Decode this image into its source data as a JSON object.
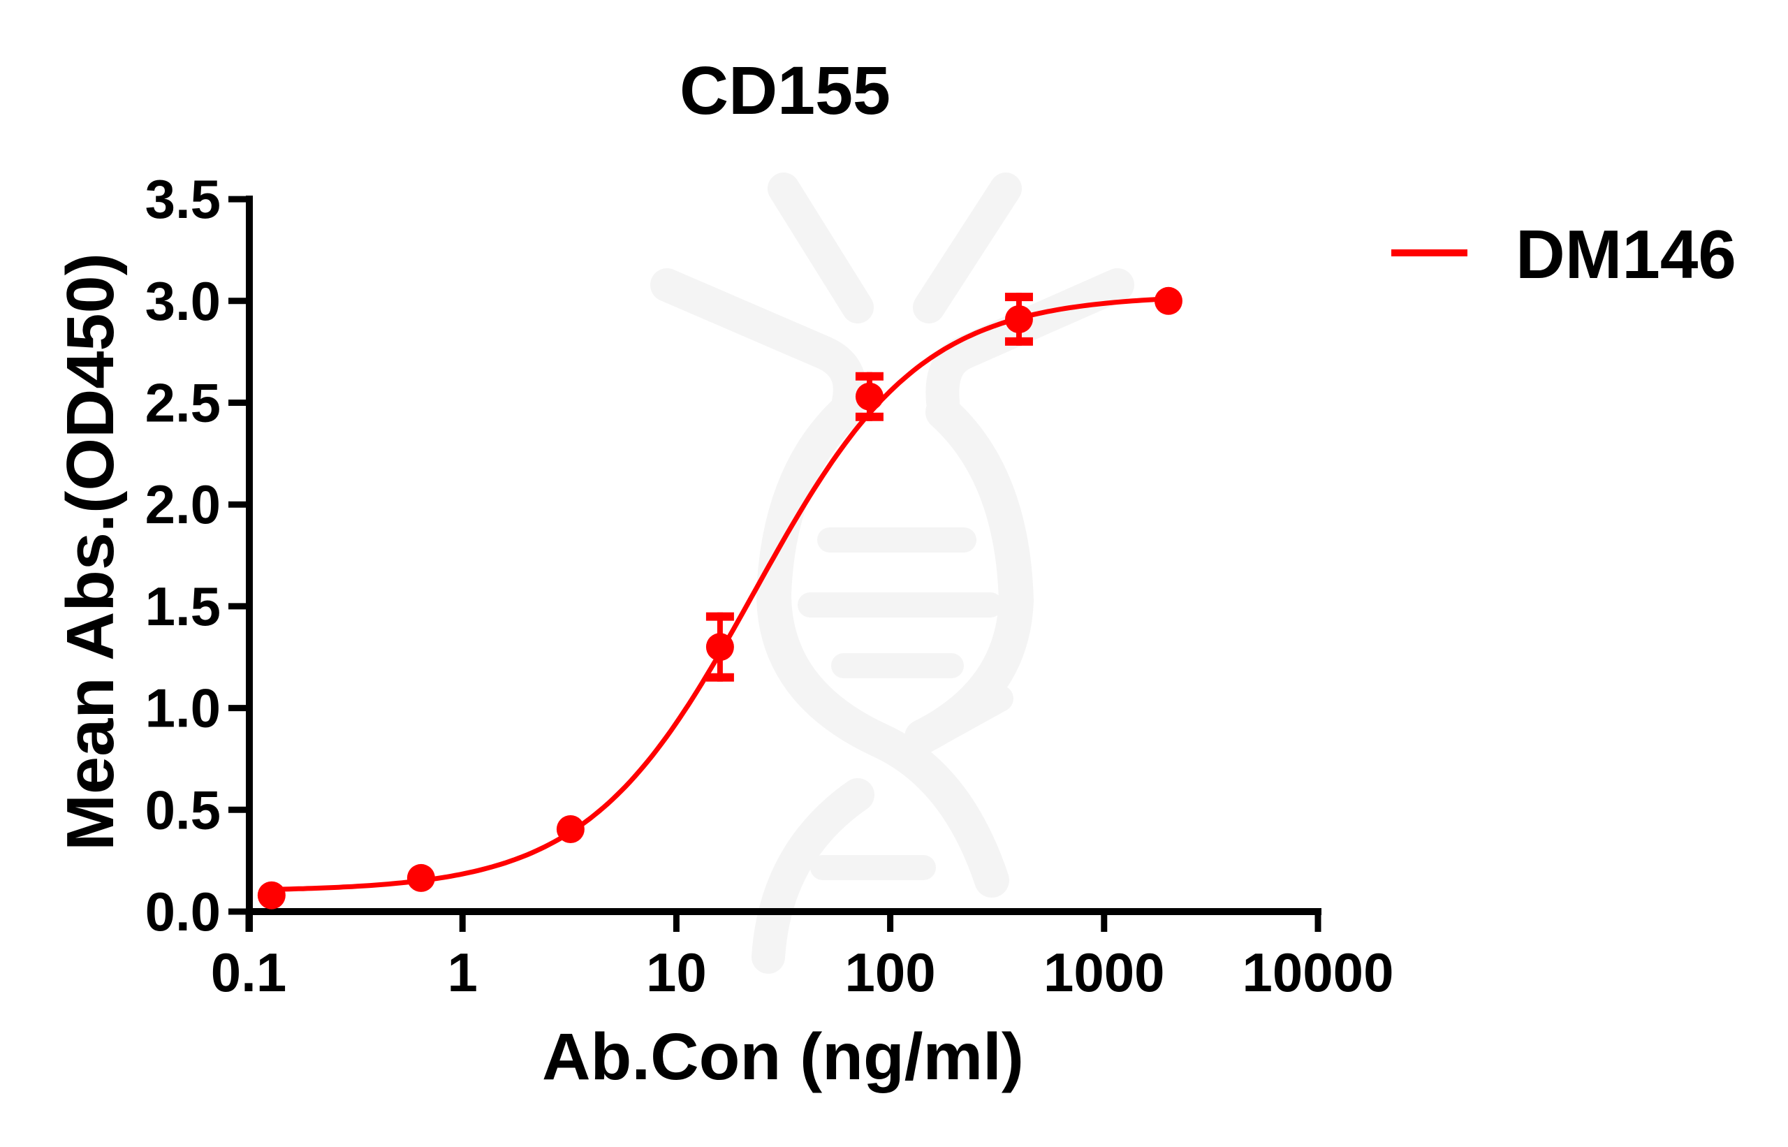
{
  "chart_data": {
    "type": "line",
    "title": "CD155",
    "xlabel": "Ab.Con (ng/ml)",
    "ylabel": "Mean Abs.(OD450)",
    "x_scale": "log10",
    "xlim": [
      0.1,
      10000
    ],
    "ylim": [
      0.0,
      3.5
    ],
    "x_ticks": [
      0.1,
      1,
      10,
      100,
      1000,
      10000
    ],
    "x_tick_labels": [
      "0.1",
      "1",
      "10",
      "100",
      "1000",
      "10000"
    ],
    "y_ticks": [
      0.0,
      0.5,
      1.0,
      1.5,
      2.0,
      2.5,
      3.0,
      3.5
    ],
    "y_tick_labels": [
      "0.0",
      "0.5",
      "1.0",
      "1.5",
      "2.0",
      "2.5",
      "3.0",
      "3.5"
    ],
    "grid": false,
    "legend_position": "top-right, outside plot",
    "series": [
      {
        "name": "DM146",
        "color": "#ff0000",
        "marker": "circle",
        "x": [
          0.128,
          0.64,
          3.2,
          16,
          80,
          400,
          2000
        ],
        "y": [
          0.08,
          0.165,
          0.405,
          1.3,
          2.53,
          2.91,
          3.0
        ],
        "error": [
          0.0,
          0.0,
          0.0,
          0.17,
          0.12,
          0.13,
          0.0
        ],
        "fit": {
          "model": "4PL sigmoid",
          "bottom": 0.1,
          "top": 3.03,
          "ec50": 23,
          "hill": 1.12
        }
      }
    ]
  },
  "legend": {
    "items": [
      {
        "label": "DM146",
        "color": "#ff0000"
      }
    ]
  },
  "watermark": {
    "icon": "dna-helix-logo",
    "color": "#f4f4f4"
  }
}
